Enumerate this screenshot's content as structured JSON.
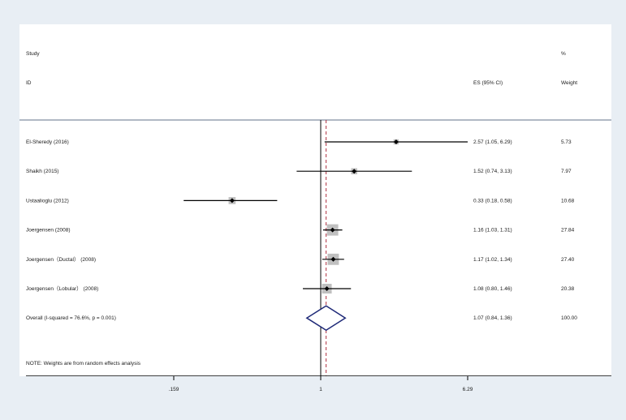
{
  "chart_data": {
    "type": "forest",
    "header": {
      "study_label": "Study",
      "id_label": "ID",
      "es_label": "ES (95% CI)",
      "weight_top": "%",
      "weight_label": "Weight"
    },
    "studies": [
      {
        "name": "El-Sheredy (2016)",
        "es": 2.57,
        "ci_low": 1.05,
        "ci_high": 6.29,
        "weight": 5.73,
        "es_text": "2.57 (1.05, 6.29)",
        "weight_text": "5.73"
      },
      {
        "name": "Shaikh (2015)",
        "es": 1.52,
        "ci_low": 0.74,
        "ci_high": 3.13,
        "weight": 7.97,
        "es_text": "1.52 (0.74, 3.13)",
        "weight_text": "7.97"
      },
      {
        "name": "Ustaalioglu (2012)",
        "es": 0.33,
        "ci_low": 0.18,
        "ci_high": 0.58,
        "weight": 10.68,
        "es_text": "0.33 (0.18, 0.58)",
        "weight_text": "10.68"
      },
      {
        "name": "Joergensen (2008)",
        "es": 1.16,
        "ci_low": 1.03,
        "ci_high": 1.31,
        "weight": 27.84,
        "es_text": "1.16 (1.03, 1.31)",
        "weight_text": "27.84"
      },
      {
        "name": "Joergensen（Ductal） (2008)",
        "es": 1.17,
        "ci_low": 1.02,
        "ci_high": 1.34,
        "weight": 27.4,
        "es_text": "1.17 (1.02, 1.34)",
        "weight_text": "27.40"
      },
      {
        "name": "Joergensen（Lobular） (2008)",
        "es": 1.08,
        "ci_low": 0.8,
        "ci_high": 1.46,
        "weight": 20.38,
        "es_text": "1.08 (0.80, 1.46)",
        "weight_text": "20.38"
      }
    ],
    "overall": {
      "label": "Overall  (I-squared = 76.6%, p = 0.001)",
      "es": 1.07,
      "ci_low": 0.84,
      "ci_high": 1.36,
      "es_text": "1.07 (0.84, 1.36)",
      "weight_text": "100.00"
    },
    "note": "NOTE: Weights are from random effects analysis",
    "x_axis": {
      "scale": "log",
      "ticks": [
        0.159,
        1,
        6.29
      ],
      "tick_labels": [
        ".159",
        "1",
        "6.29"
      ]
    },
    "null_line": 1,
    "colors": {
      "background": "#e8eef4",
      "plot": "#ffffff",
      "box": "#c0c0c0",
      "diamond": "#1f2a78",
      "overall_line": "#b03040",
      "lines": "#000000"
    }
  }
}
